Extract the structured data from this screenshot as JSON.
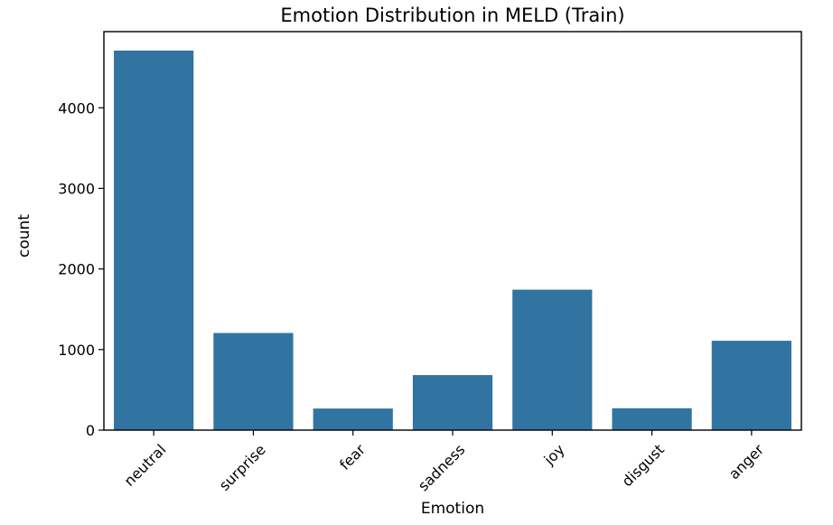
{
  "chart_data": {
    "type": "bar",
    "title": "Emotion Distribution in MELD (Train)",
    "xlabel": "Emotion",
    "ylabel": "count",
    "categories": [
      "neutral",
      "surprise",
      "fear",
      "sadness",
      "joy",
      "disgust",
      "anger"
    ],
    "values": [
      4710,
      1205,
      268,
      683,
      1743,
      271,
      1109
    ],
    "ylim": [
      0,
      4945
    ],
    "yticks": [
      0,
      1000,
      2000,
      3000,
      4000
    ],
    "grid": false,
    "bar_color": "#3274a1",
    "xtick_rotation": -45
  }
}
